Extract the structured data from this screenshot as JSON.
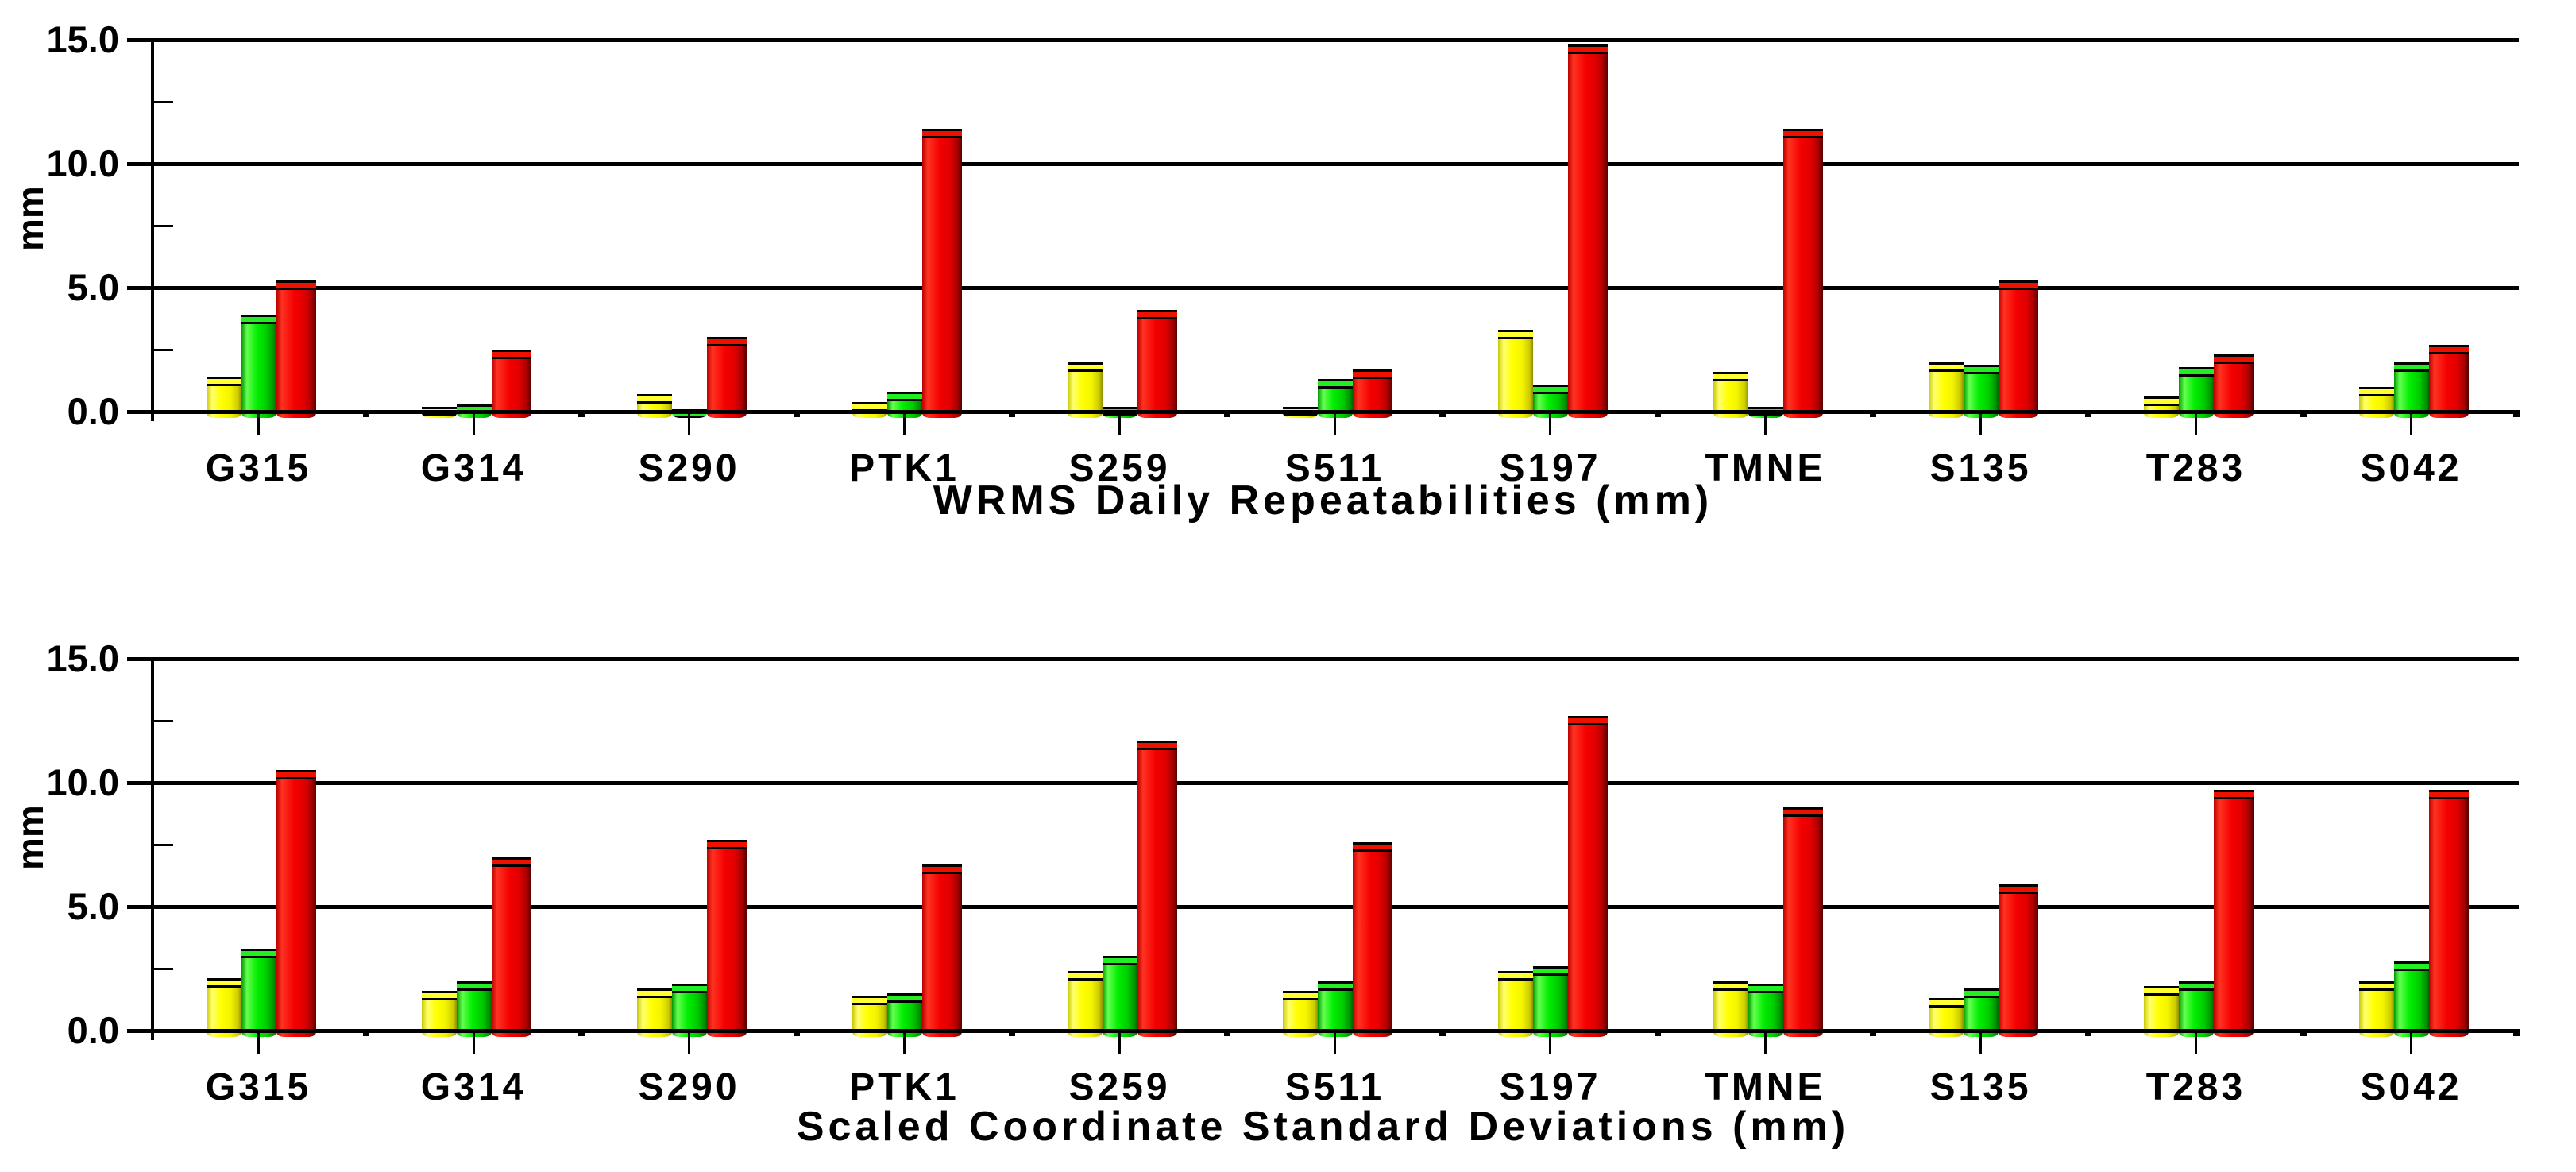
{
  "page": {
    "background": "#ffffff"
  },
  "chart_data": [
    {
      "type": "bar",
      "title": "WRMS Daily Repeatabilities (mm)",
      "ylabel": "mm",
      "xlabel": "",
      "ylim": [
        0,
        15
      ],
      "grid": "horizontal-major",
      "legend": "none",
      "y_ticks": [
        {
          "label": "15.0",
          "mm": 15.0
        },
        {
          "label": "10.0",
          "mm": 10.0
        },
        {
          "label": "5.0",
          "mm": 5.0
        },
        {
          "label": "0.0",
          "mm": 0.0
        }
      ],
      "minor_ticks_mm": [
        12.5,
        7.5,
        2.5
      ],
      "categories": [
        "G315",
        "G314",
        "S290",
        "PTK1",
        "S259",
        "S511",
        "S197",
        "TMNE",
        "S135",
        "T283",
        "S042"
      ],
      "series": [
        {
          "name": "yellow",
          "color": "#ffff00",
          "values": [
            1.4,
            0.2,
            0.7,
            0.4,
            2.0,
            0.2,
            3.3,
            1.6,
            2.0,
            0.6,
            1.0
          ]
        },
        {
          "name": "green",
          "color": "#00dd00",
          "values": [
            3.9,
            0.3,
            0.1,
            0.8,
            0.2,
            1.3,
            1.1,
            0.2,
            1.9,
            1.8,
            2.0
          ]
        },
        {
          "name": "red",
          "color": "#ee0000",
          "values": [
            5.3,
            2.5,
            3.0,
            11.4,
            4.1,
            1.7,
            14.8,
            11.4,
            5.3,
            2.3,
            2.7
          ]
        }
      ]
    },
    {
      "type": "bar",
      "title": "Scaled Coordinate Standard Deviations (mm)",
      "ylabel": "mm",
      "xlabel": "",
      "ylim": [
        0,
        15
      ],
      "grid": "horizontal-major",
      "legend": "none",
      "y_ticks": [
        {
          "label": "15.0",
          "mm": 15.0
        },
        {
          "label": "10.0",
          "mm": 10.0
        },
        {
          "label": "5.0",
          "mm": 5.0
        },
        {
          "label": "0.0",
          "mm": 0.0
        }
      ],
      "minor_ticks_mm": [
        12.5,
        7.5,
        2.5
      ],
      "categories": [
        "G315",
        "G314",
        "S290",
        "PTK1",
        "S259",
        "S511",
        "S197",
        "TMNE",
        "S135",
        "T283",
        "S042"
      ],
      "series": [
        {
          "name": "yellow",
          "color": "#ffff00",
          "values": [
            2.1,
            1.6,
            1.7,
            1.4,
            2.4,
            1.6,
            2.4,
            2.0,
            1.3,
            1.8,
            2.0
          ]
        },
        {
          "name": "green",
          "color": "#00dd00",
          "values": [
            3.3,
            2.0,
            1.9,
            1.5,
            3.0,
            2.0,
            2.6,
            1.9,
            1.7,
            2.0,
            2.8
          ]
        },
        {
          "name": "red",
          "color": "#ee0000",
          "values": [
            10.5,
            7.0,
            7.7,
            6.7,
            11.7,
            7.6,
            12.7,
            9.0,
            5.9,
            9.7,
            9.7
          ]
        }
      ]
    }
  ]
}
